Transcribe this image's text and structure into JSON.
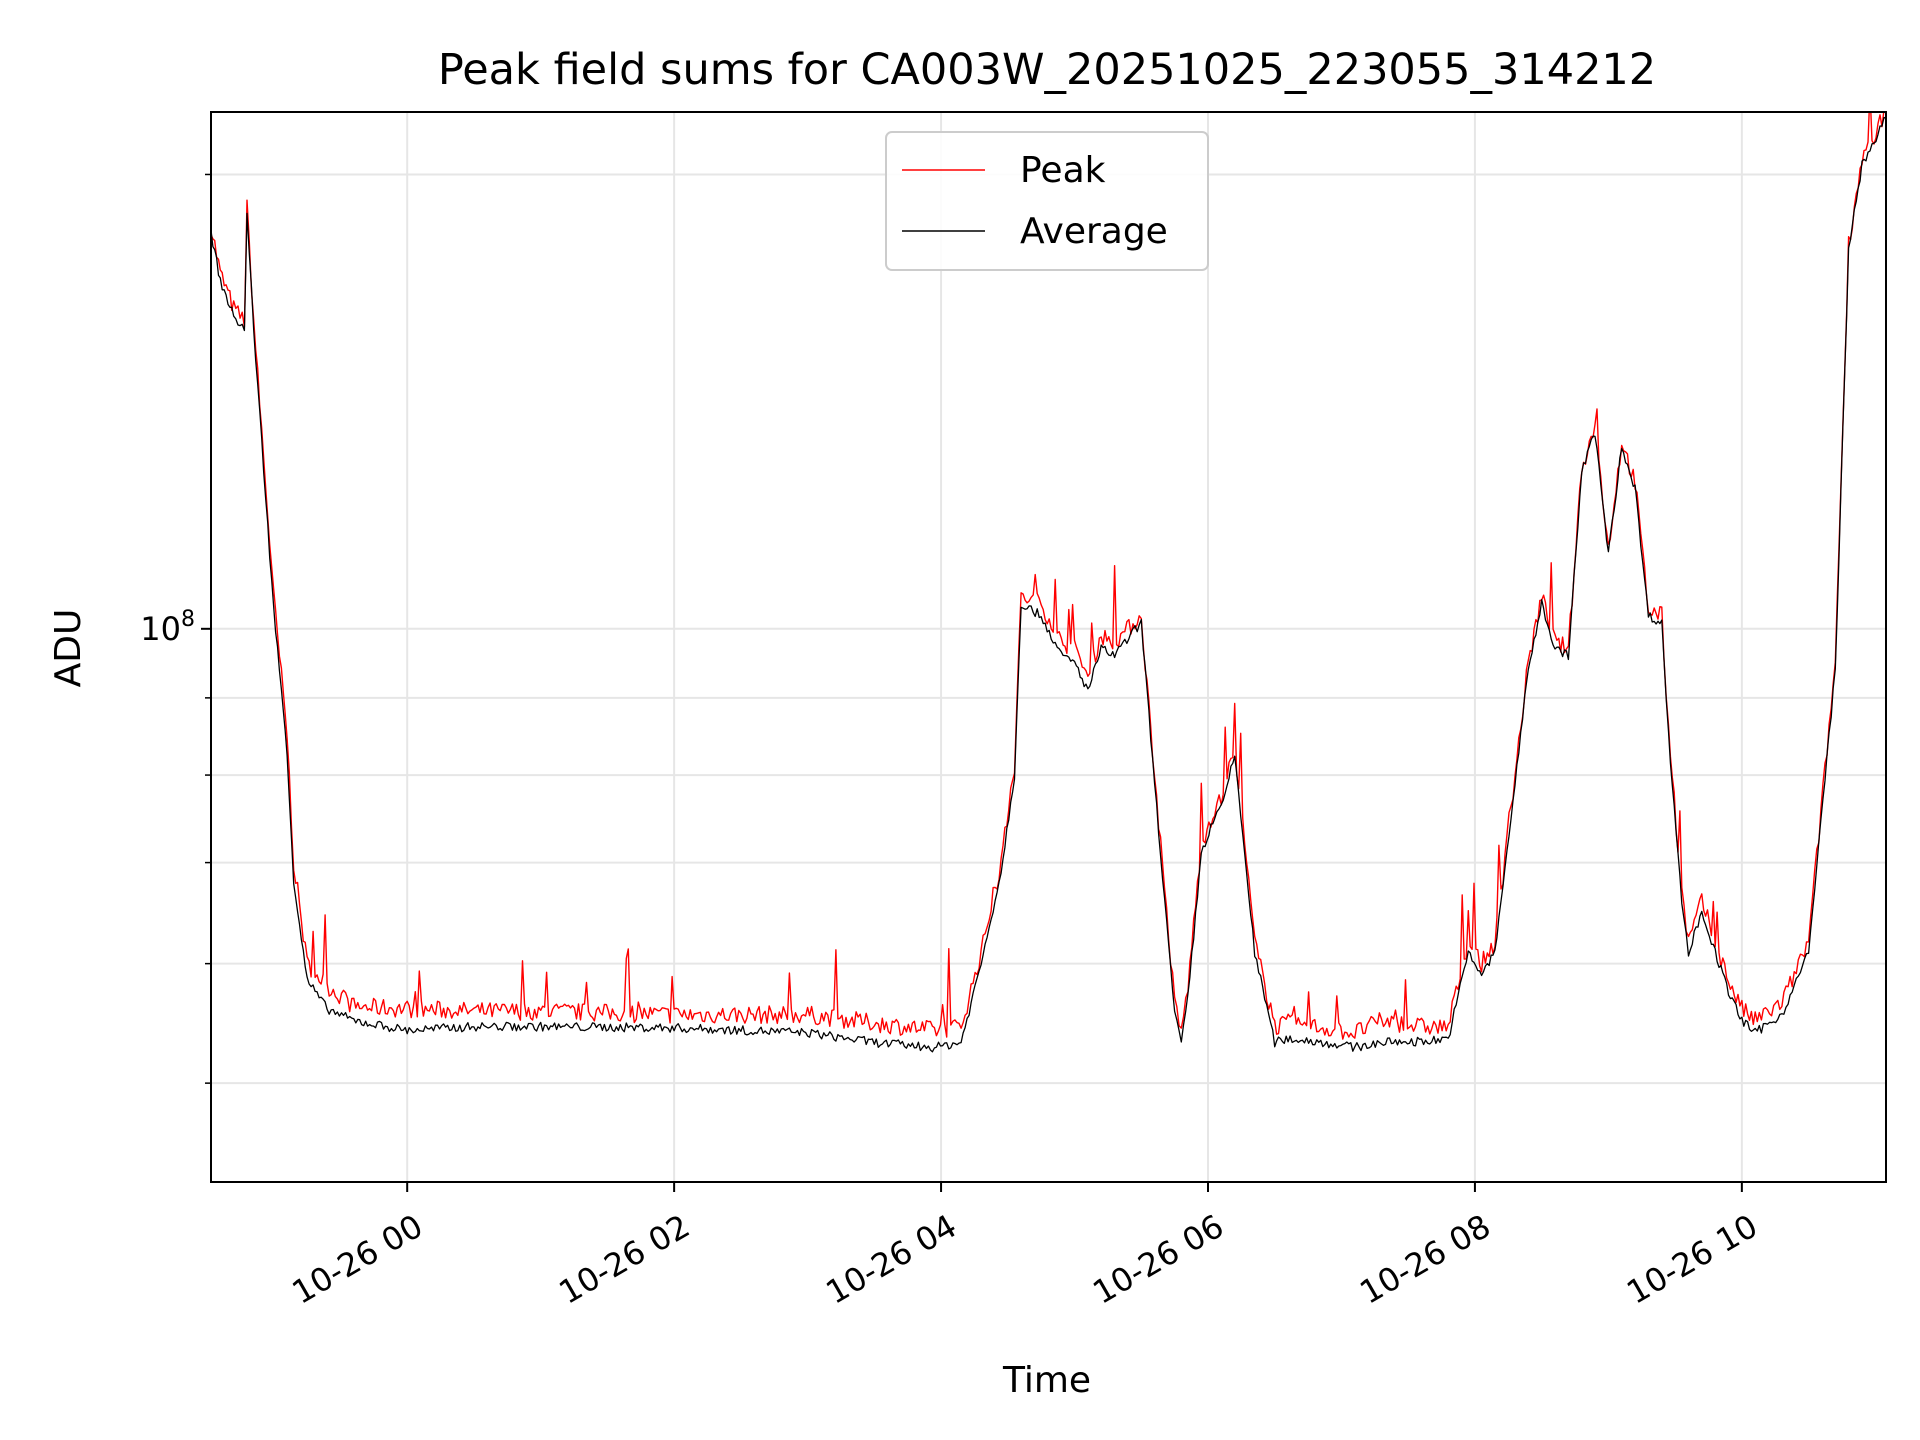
{
  "chart_data": {
    "type": "line",
    "title": "Peak field sums for CA003W_20251025_223055_314212",
    "xlabel": "Time",
    "ylabel": "ADU",
    "yscale": "log",
    "ylim": [
      43000000.0,
      220000000.0
    ],
    "xlim": [
      "2025-10-25 22:32",
      "2025-10-26 11:04"
    ],
    "grid": true,
    "legend_position": "upper-center",
    "x_ticks": [
      "10-26 00",
      "10-26 02",
      "10-26 04",
      "10-26 06",
      "10-26 08",
      "10-26 10"
    ],
    "y_ticks": [
      {
        "base": "10",
        "exponent": "8",
        "value": 100000000.0
      }
    ],
    "x_hours": [
      -1.47,
      -1.4,
      -1.3,
      -1.22,
      -1.2,
      -1.15,
      -1.0,
      -0.9,
      -0.85,
      -0.75,
      -0.6,
      -0.4,
      0.0,
      0.5,
      1.0,
      2.0,
      2.5,
      3.0,
      3.5,
      3.95,
      4.15,
      4.3,
      4.45,
      4.55,
      4.6,
      4.75,
      4.9,
      5.0,
      5.1,
      5.2,
      5.3,
      5.5,
      5.6,
      5.75,
      5.8,
      5.85,
      5.95,
      6.05,
      6.1,
      6.2,
      6.35,
      6.5,
      6.6,
      6.8,
      7.1,
      7.3,
      7.6,
      7.8,
      7.95,
      8.05,
      8.15,
      8.3,
      8.4,
      8.5,
      8.6,
      8.7,
      8.8,
      8.9,
      9.0,
      9.1,
      9.2,
      9.3,
      9.4,
      9.45,
      9.55,
      9.6,
      9.7,
      9.8,
      9.9,
      10.0,
      10.1,
      10.3,
      10.5,
      10.7,
      10.8,
      10.9,
      11.08
    ],
    "series": [
      {
        "name": "Peak",
        "color": "#ff0000",
        "values": [
          185000000.0,
          172000000.0,
          163000000.0,
          160000000.0,
          190000000.0,
          160000000.0,
          105000000.0,
          85000000.0,
          70000000.0,
          60000000.0,
          58000000.0,
          56200000.0,
          56000000.0,
          55800000.0,
          55800000.0,
          55500000.0,
          55500000.0,
          55500000.0,
          54800000.0,
          54200000.0,
          54500000.0,
          61000000.0,
          70000000.0,
          81000000.0,
          105000000.0,
          104000000.0,
          98000000.0,
          97000000.0,
          93000000.0,
          99000000.0,
          98000000.0,
          102000000.0,
          80000000.0,
          56500000.0,
          54000000.0,
          58000000.0,
          72000000.0,
          76000000.0,
          77000000.0,
          83500000.0,
          62000000.0,
          54500000.0,
          54800000.0,
          54500000.0,
          54000000.0,
          55000000.0,
          54500000.0,
          54500000.0,
          62000000.0,
          60000000.0,
          62000000.0,
          80000000.0,
          95000000.0,
          105000000.0,
          98000000.0,
          97000000.0,
          128000000.0,
          136000000.0,
          113000000.0,
          133000000.0,
          125000000.0,
          103000000.0,
          102000000.0,
          86000000.0,
          67000000.0,
          62000000.0,
          66000000.0,
          62000000.0,
          58500000.0,
          56000000.0,
          55000000.0,
          56500000.0,
          62000000.0,
          95000000.0,
          180000000.0,
          205000000.0,
          220000000.0
        ]
      },
      {
        "name": "Average",
        "color": "#000000",
        "values": [
          183000000.0,
          170000000.0,
          161000000.0,
          158000000.0,
          188000000.0,
          158000000.0,
          103000000.0,
          83000000.0,
          68000000.0,
          58500000.0,
          56000000.0,
          55000000.0,
          54200000.0,
          54500000.0,
          54500000.0,
          54400000.0,
          54200000.0,
          54000000.0,
          53200000.0,
          52800000.0,
          53200000.0,
          60000000.0,
          69000000.0,
          80000000.0,
          104000000.0,
          102000000.0,
          96000000.0,
          95000000.0,
          91000000.0,
          97000000.0,
          96000000.0,
          101000000.0,
          79000000.0,
          55500000.0,
          53200000.0,
          57000000.0,
          71000000.0,
          75000000.0,
          76000000.0,
          82500000.0,
          61000000.0,
          53200000.0,
          53500000.0,
          53300000.0,
          52800000.0,
          53200000.0,
          53300000.0,
          53500000.0,
          61000000.0,
          59000000.0,
          61000000.0,
          79000000.0,
          94000000.0,
          104000000.0,
          97000000.0,
          96000000.0,
          127000000.0,
          135000000.0,
          112000000.0,
          132000000.0,
          124000000.0,
          102000000.0,
          101000000.0,
          85000000.0,
          66000000.0,
          61000000.0,
          65000000.0,
          61000000.0,
          57500000.0,
          55000000.0,
          54000000.0,
          55500000.0,
          61000000.0,
          94000000.0,
          178000000.0,
          203000000.0,
          218000000.0
        ]
      }
    ]
  }
}
